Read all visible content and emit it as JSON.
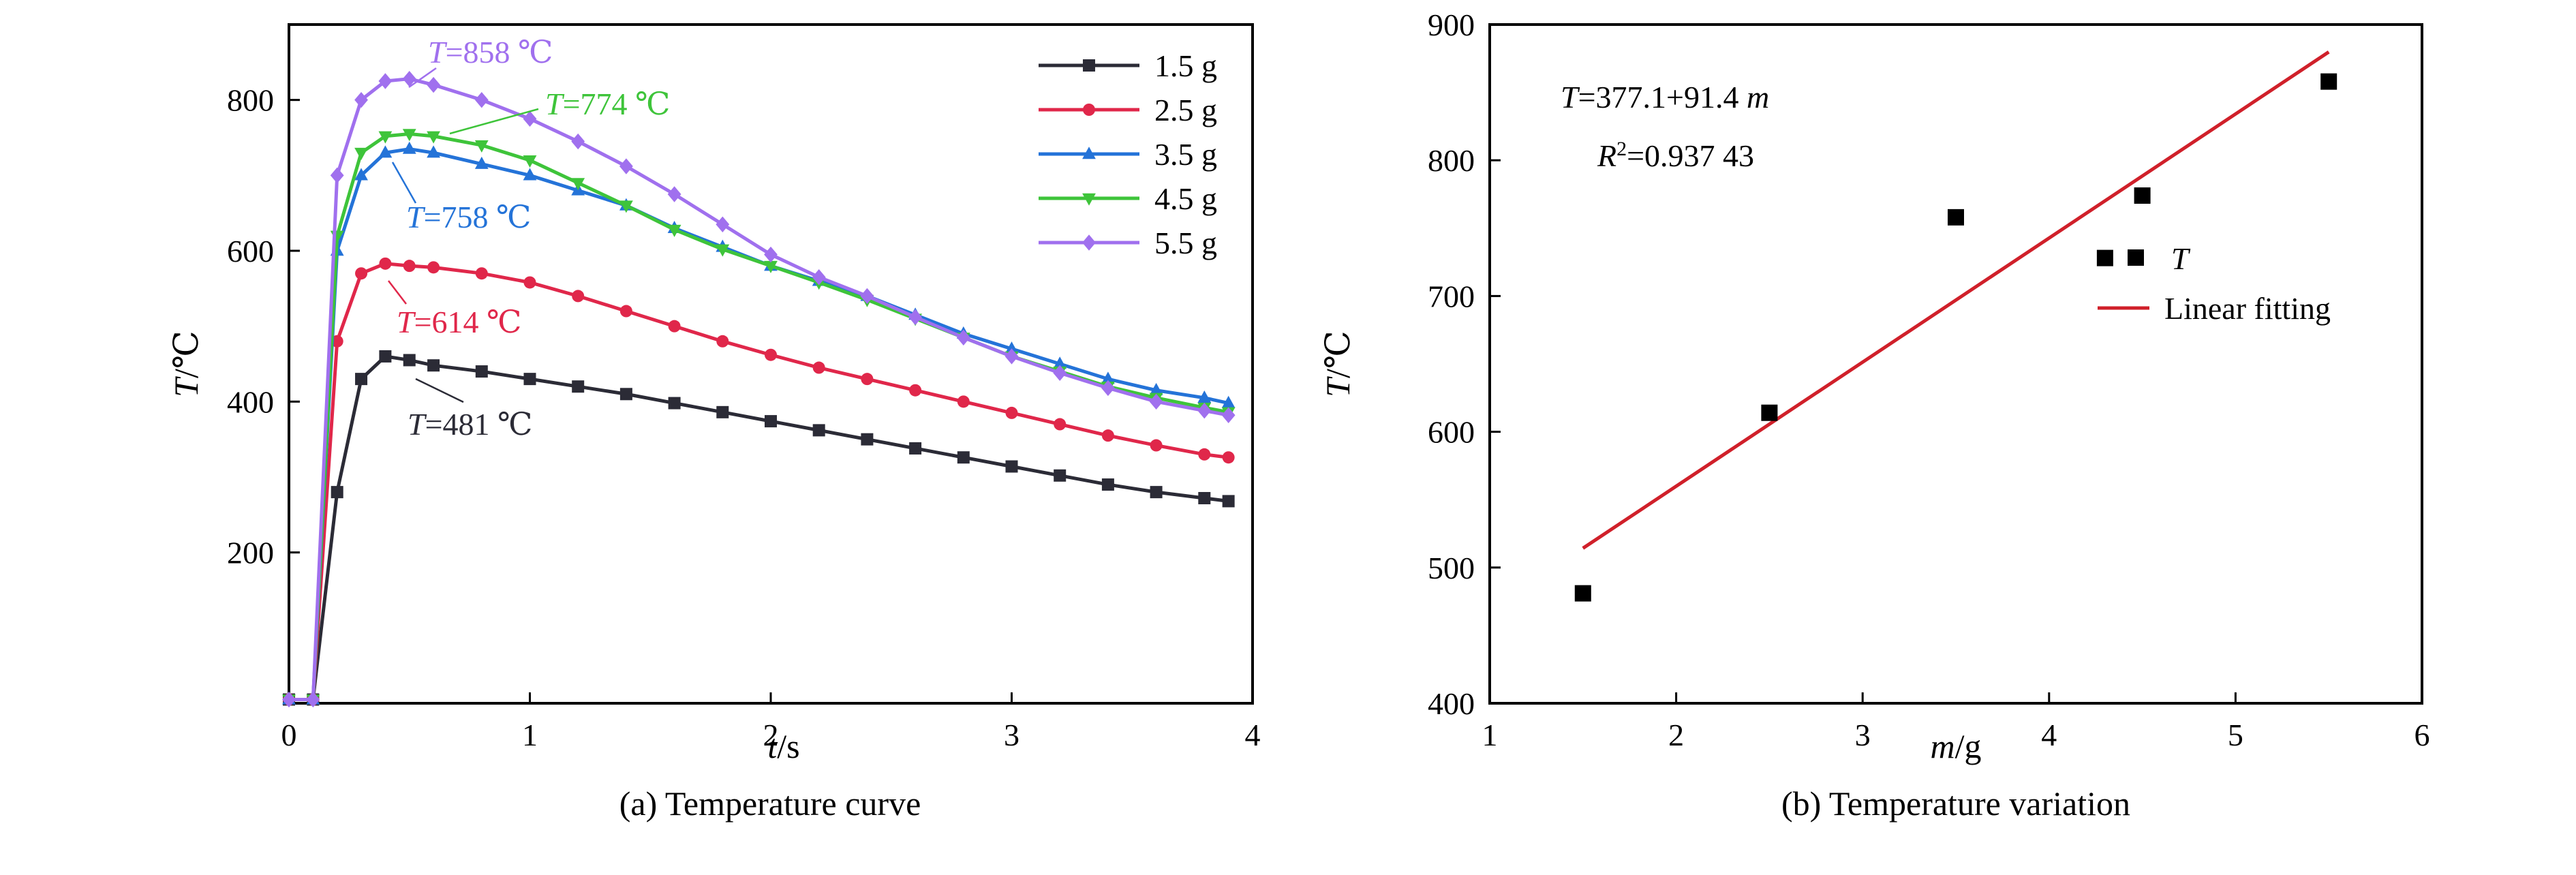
{
  "chart_data": [
    {
      "type": "line",
      "caption": "(a) Temperature curve",
      "xlabel": "t/s",
      "ylabel": "T/℃",
      "xlim": [
        0,
        4
      ],
      "ylim": [
        0,
        900
      ],
      "xticks": [
        0,
        1,
        2,
        3,
        4
      ],
      "yticks": [
        200,
        400,
        600,
        800
      ],
      "legend_position": "top-right",
      "x": [
        0.0,
        0.1,
        0.2,
        0.3,
        0.4,
        0.5,
        0.6,
        0.8,
        1.0,
        1.2,
        1.4,
        1.6,
        1.8,
        2.0,
        2.2,
        2.4,
        2.6,
        2.8,
        3.0,
        3.2,
        3.4,
        3.6,
        3.8,
        3.9
      ],
      "series": [
        {
          "name": "1.5 g",
          "color": "#2b2b36",
          "marker": "square",
          "values": [
            5,
            5,
            280,
            430,
            460,
            455,
            448,
            440,
            430,
            420,
            410,
            398,
            386,
            374,
            362,
            350,
            338,
            326,
            314,
            302,
            290,
            280,
            272,
            268
          ]
        },
        {
          "name": "2.5 g",
          "color": "#e0274a",
          "marker": "circle",
          "values": [
            5,
            5,
            480,
            570,
            583,
            580,
            578,
            570,
            558,
            540,
            520,
            500,
            480,
            462,
            445,
            430,
            415,
            400,
            385,
            370,
            355,
            342,
            330,
            326
          ]
        },
        {
          "name": "3.5 g",
          "color": "#2473d8",
          "marker": "triangle-up",
          "values": [
            5,
            5,
            600,
            700,
            730,
            735,
            730,
            715,
            700,
            680,
            660,
            630,
            605,
            580,
            560,
            540,
            515,
            490,
            470,
            450,
            430,
            415,
            405,
            398
          ]
        },
        {
          "name": "4.5 g",
          "color": "#3ec43a",
          "marker": "triangle-down",
          "values": [
            5,
            5,
            620,
            730,
            752,
            755,
            752,
            740,
            720,
            690,
            660,
            628,
            602,
            580,
            558,
            535,
            510,
            485,
            460,
            440,
            420,
            405,
            392,
            386
          ]
        },
        {
          "name": "5.5 g",
          "color": "#a070ee",
          "marker": "diamond",
          "values": [
            5,
            5,
            700,
            800,
            825,
            828,
            820,
            800,
            775,
            745,
            712,
            675,
            635,
            595,
            565,
            540,
            512,
            485,
            460,
            438,
            418,
            400,
            388,
            382
          ]
        }
      ],
      "annotations": [
        {
          "text_italic": "T",
          "text": "=858 ℃",
          "color": "#a070ee"
        },
        {
          "text_italic": "T",
          "text": "=774 ℃",
          "color": "#3ec43a"
        },
        {
          "text_italic": "T",
          "text": "=758 ℃",
          "color": "#2473d8"
        },
        {
          "text_italic": "T",
          "text": "=614 ℃",
          "color": "#e0274a"
        },
        {
          "text_italic": "T",
          "text": "=481 ℃",
          "color": "#2b2b36"
        }
      ]
    },
    {
      "type": "scatter",
      "caption": "(b) Temperature variation",
      "xlabel": "m/g",
      "ylabel": "T/℃",
      "xlim": [
        1,
        6
      ],
      "ylim": [
        400,
        900
      ],
      "xticks": [
        1,
        2,
        3,
        4,
        5,
        6
      ],
      "yticks": [
        400,
        500,
        600,
        700,
        800,
        900
      ],
      "legend_position": "right",
      "points_series_name": "T",
      "points": [
        {
          "x": 1.5,
          "y": 481
        },
        {
          "x": 2.5,
          "y": 614
        },
        {
          "x": 3.5,
          "y": 758
        },
        {
          "x": 4.3,
          "y": 728
        },
        {
          "x": 4.5,
          "y": 774
        },
        {
          "x": 5.5,
          "y": 858
        }
      ],
      "fit": {
        "name": "Linear fitting",
        "intercept": 377.1,
        "slope": 91.4,
        "x_range": [
          1.5,
          5.5
        ],
        "color": "#d0202a"
      },
      "equation_italic": "T",
      "equation_rest": "=377.1+91.4 ",
      "equation_var": "m",
      "r2_italic": "R",
      "r2_sup": "2",
      "r2_rest": "=0.937 43"
    }
  ]
}
